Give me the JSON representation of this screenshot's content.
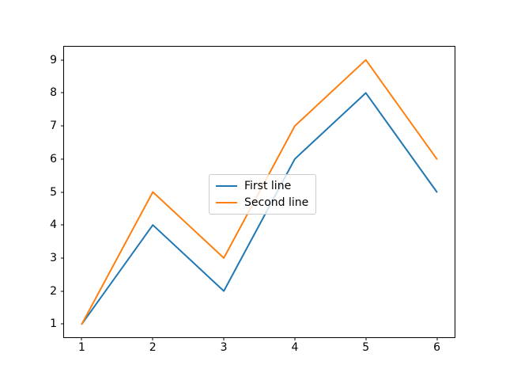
{
  "chart_data": {
    "type": "line",
    "x": [
      1,
      2,
      3,
      4,
      5,
      6
    ],
    "series": [
      {
        "name": "First line",
        "color": "#1f77b4",
        "values": [
          1,
          4,
          2,
          6,
          8,
          5
        ]
      },
      {
        "name": "Second line",
        "color": "#ff7f0e",
        "values": [
          1,
          5,
          3,
          7,
          9,
          6
        ]
      }
    ],
    "title": "",
    "xlabel": "",
    "ylabel": "",
    "xlim": [
      0.75,
      6.25
    ],
    "ylim": [
      0.6,
      9.4
    ],
    "x_ticks": [
      "1",
      "2",
      "3",
      "4",
      "5",
      "6"
    ],
    "y_ticks": [
      "1",
      "2",
      "3",
      "4",
      "5",
      "6",
      "7",
      "8",
      "9"
    ],
    "grid": false,
    "legend_position": "center",
    "colors": {
      "background": "#ffffff",
      "spine": "#000000",
      "tick_text": "#000000",
      "legend_border": "#cccccc"
    }
  }
}
